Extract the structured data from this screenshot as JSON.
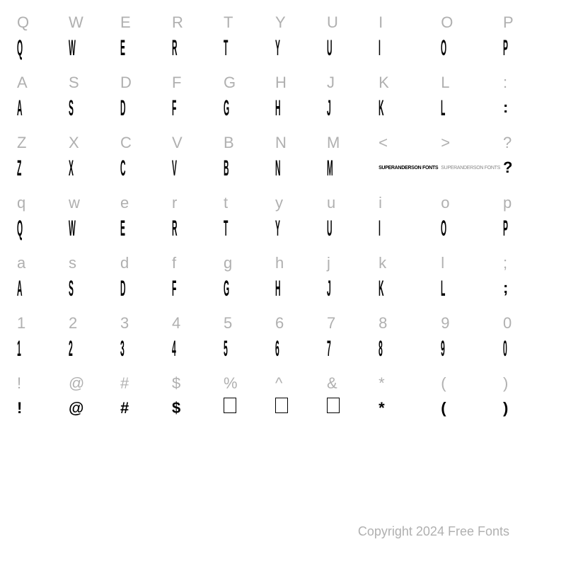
{
  "rows": [
    {
      "keys": [
        "Q",
        "W",
        "E",
        "R",
        "T",
        "Y",
        "U",
        "I",
        "O",
        "P"
      ],
      "glyphs": [
        "Q",
        "W",
        "E",
        "R",
        "T",
        "Y",
        "U",
        "I",
        "O",
        "P"
      ],
      "glyphType": [
        "tall",
        "tall",
        "tall",
        "tall",
        "tall",
        "tall",
        "tall",
        "tall",
        "tall",
        "tall"
      ]
    },
    {
      "keys": [
        "A",
        "S",
        "D",
        "F",
        "G",
        "H",
        "J",
        "K",
        "L",
        ":"
      ],
      "glyphs": [
        "A",
        "S",
        "D",
        "F",
        "G",
        "H",
        "J",
        "K",
        "L",
        ":"
      ],
      "glyphType": [
        "tall",
        "tall",
        "tall",
        "tall",
        "tall",
        "tall",
        "tall",
        "tall",
        "tall",
        "normal"
      ]
    },
    {
      "keys": [
        "Z",
        "X",
        "C",
        "V",
        "B",
        "N",
        "M",
        "<",
        ">",
        "?"
      ],
      "glyphs": [
        "Z",
        "X",
        "C",
        "V",
        "B",
        "N",
        "M",
        "SUPERANDERSON FONTS",
        "SUPERANDERSON FONTS",
        "?"
      ],
      "glyphType": [
        "tall",
        "tall",
        "tall",
        "tall",
        "tall",
        "tall",
        "tall",
        "wordmark",
        "wordmark-outline",
        "normal"
      ]
    },
    {
      "keys": [
        "q",
        "w",
        "e",
        "r",
        "t",
        "y",
        "u",
        "i",
        "o",
        "p"
      ],
      "glyphs": [
        "Q",
        "W",
        "E",
        "R",
        "T",
        "Y",
        "U",
        "I",
        "O",
        "P"
      ],
      "glyphType": [
        "tall",
        "tall",
        "tall",
        "tall",
        "tall",
        "tall",
        "tall",
        "tall",
        "tall",
        "tall"
      ]
    },
    {
      "keys": [
        "a",
        "s",
        "d",
        "f",
        "g",
        "h",
        "j",
        "k",
        "l",
        ";"
      ],
      "glyphs": [
        "A",
        "S",
        "D",
        "F",
        "G",
        "H",
        "J",
        "K",
        "L",
        ";"
      ],
      "glyphType": [
        "tall",
        "tall",
        "tall",
        "tall",
        "tall",
        "tall",
        "tall",
        "tall",
        "tall",
        "normal"
      ]
    },
    {
      "keys": [
        "1",
        "2",
        "3",
        "4",
        "5",
        "6",
        "7",
        "8",
        "9",
        "0"
      ],
      "glyphs": [
        "1",
        "2",
        "3",
        "4",
        "5",
        "6",
        "7",
        "8",
        "9",
        "0"
      ],
      "glyphType": [
        "tall",
        "tall",
        "tall",
        "tall",
        "tall",
        "tall",
        "tall",
        "tall",
        "tall",
        "tall"
      ]
    },
    {
      "keys": [
        "!",
        "@",
        "#",
        "$",
        "%",
        "^",
        "&",
        "*",
        "(",
        ")"
      ],
      "glyphs": [
        "!",
        "@",
        "#",
        "$",
        "",
        "",
        "",
        "*",
        "(",
        ")"
      ],
      "glyphType": [
        "normal",
        "normal",
        "normal",
        "normal",
        "box",
        "box",
        "box",
        "normal",
        "normal",
        "normal"
      ]
    }
  ],
  "copyright": "Copyright 2024 Free Fonts",
  "colors": {
    "background": "#ffffff",
    "keyColor": "#b0b0b0",
    "glyphColor": "#000000",
    "copyrightColor": "#b0b0b0"
  },
  "typography": {
    "keyFontSize": 22,
    "glyphFontSize": 26,
    "copyrightFontSize": 18
  }
}
